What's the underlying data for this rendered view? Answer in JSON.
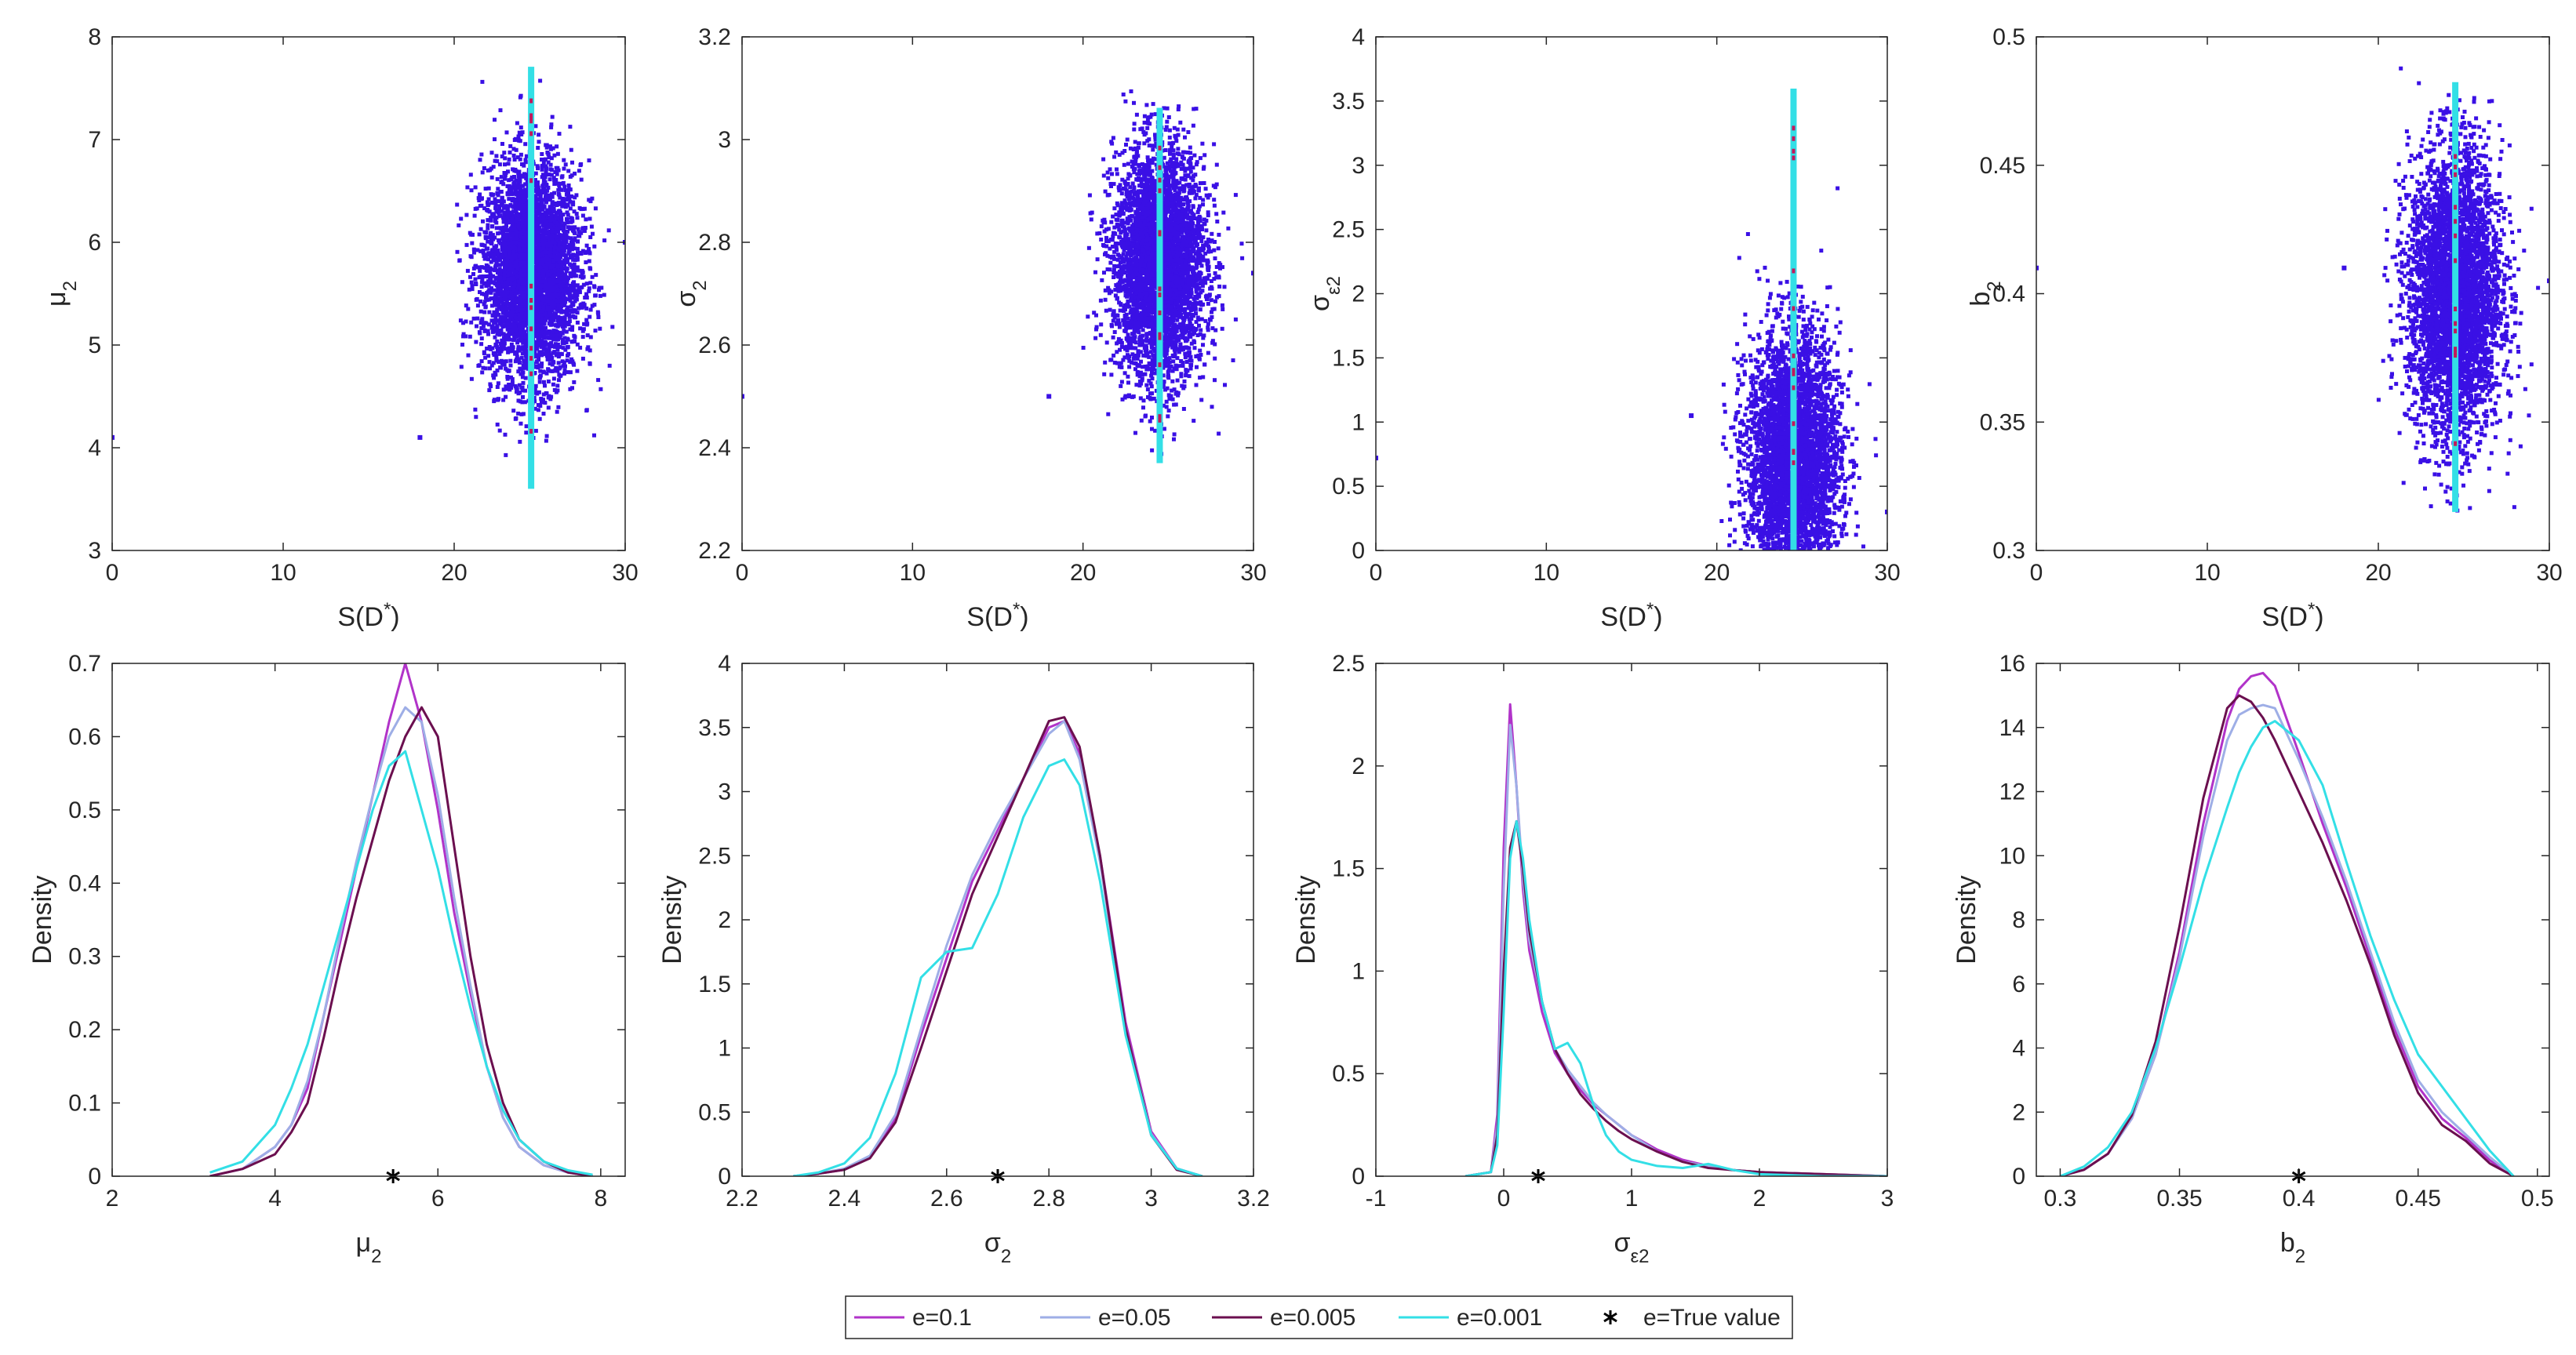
{
  "figure": {
    "legend": [
      {
        "label": "e=0.1",
        "color": "#b133c9",
        "kind": "line"
      },
      {
        "label": "e=0.05",
        "color": "#9eaee6",
        "kind": "line"
      },
      {
        "label": "e=0.005",
        "color": "#6b0f4f",
        "kind": "line"
      },
      {
        "label": "e=0.001",
        "color": "#33dfe6",
        "kind": "line"
      },
      {
        "label": "e=True value",
        "color": "#000000",
        "kind": "marker"
      }
    ]
  },
  "chart_data": [
    {
      "type": "scatter",
      "panel": "scatter-mu2",
      "xlabel": "S(D*)",
      "ylabel": "μ2",
      "xlim": [
        0,
        30
      ],
      "ylim": [
        3,
        8
      ],
      "xticks": [
        "0",
        "10",
        "20",
        "30"
      ],
      "yticks": [
        "3",
        "4",
        "5",
        "6",
        "7",
        "8"
      ],
      "cloud": {
        "x_center": 24.5,
        "x_spread": 3.2,
        "y_center": 5.7,
        "y_spread": 0.95,
        "y_min": 3.6,
        "y_max": 7.9
      },
      "outliers": [
        [
          0,
          4.1
        ],
        [
          18,
          4.1
        ],
        [
          30,
          6.0
        ]
      ],
      "line_x": 24.5
    },
    {
      "type": "scatter",
      "panel": "scatter-sigma2",
      "xlabel": "S(D*)",
      "ylabel": "σ2",
      "xlim": [
        0,
        30
      ],
      "ylim": [
        2.2,
        3.2
      ],
      "xticks": [
        "0",
        "10",
        "20",
        "30"
      ],
      "yticks": [
        "2.2",
        "2.4",
        "2.6",
        "2.8",
        "3",
        "3.2"
      ],
      "cloud": {
        "x_center": 24.5,
        "x_spread": 3.0,
        "y_center": 2.76,
        "y_spread": 0.2,
        "y_min": 2.37,
        "y_max": 3.1
      },
      "outliers": [
        [
          0,
          2.5
        ],
        [
          18,
          2.5
        ],
        [
          30,
          2.74
        ]
      ],
      "line_x": 24.5
    },
    {
      "type": "scatter",
      "panel": "scatter-sigma-eps2",
      "xlabel": "S(D*)",
      "ylabel": "σε2",
      "xlim": [
        0,
        30
      ],
      "ylim": [
        0,
        4
      ],
      "xticks": [
        "0",
        "10",
        "20",
        "30"
      ],
      "yticks": [
        "0",
        "0.5",
        "1",
        "1.5",
        "2",
        "2.5",
        "3",
        "3.5",
        "4"
      ],
      "cloud": {
        "x_center": 24.5,
        "x_spread": 3.0,
        "y_center": 0.7,
        "y_spread": 0.9,
        "y_min": 0,
        "y_max": 3.75
      },
      "outliers": [
        [
          0,
          0.72
        ],
        [
          18.5,
          1.05
        ],
        [
          30,
          0.3
        ]
      ],
      "line_x": 24.5
    },
    {
      "type": "scatter",
      "panel": "scatter-b2",
      "xlabel": "S(D*)",
      "ylabel": "b2",
      "xlim": [
        0,
        30
      ],
      "ylim": [
        0.3,
        0.5
      ],
      "xticks": [
        "0",
        "10",
        "20",
        "30"
      ],
      "yticks": [
        "0.3",
        "0.35",
        "0.4",
        "0.45",
        "0.5"
      ],
      "cloud": {
        "x_center": 24.5,
        "x_spread": 3.0,
        "y_center": 0.4,
        "y_spread": 0.05,
        "y_min": 0.315,
        "y_max": 0.49
      },
      "outliers": [
        [
          0,
          0.41
        ],
        [
          18,
          0.41
        ],
        [
          30,
          0.405
        ]
      ],
      "line_x": 24.5
    },
    {
      "type": "line",
      "panel": "density-mu2",
      "xlabel": "μ2",
      "ylabel": "Density",
      "xlim": [
        2,
        8.3
      ],
      "ylim": [
        0,
        0.7
      ],
      "xticks": [
        "2",
        "4",
        "6",
        "8"
      ],
      "yticks": [
        "0",
        "0.1",
        "0.2",
        "0.3",
        "0.4",
        "0.5",
        "0.6",
        "0.7"
      ],
      "true_value": 5.45,
      "x": [
        3.2,
        3.6,
        4.0,
        4.2,
        4.4,
        4.6,
        4.8,
        5.0,
        5.2,
        5.4,
        5.6,
        5.8,
        6.0,
        6.2,
        6.4,
        6.6,
        6.8,
        7.0,
        7.3,
        7.6,
        7.9
      ],
      "series": [
        {
          "name": "e=0.1",
          "values": [
            0,
            0.01,
            0.04,
            0.07,
            0.12,
            0.22,
            0.32,
            0.42,
            0.52,
            0.62,
            0.7,
            0.62,
            0.5,
            0.36,
            0.25,
            0.15,
            0.08,
            0.04,
            0.015,
            0.005,
            0
          ]
        },
        {
          "name": "e=0.05",
          "values": [
            0,
            0.01,
            0.04,
            0.07,
            0.13,
            0.22,
            0.33,
            0.43,
            0.52,
            0.6,
            0.64,
            0.62,
            0.52,
            0.38,
            0.26,
            0.15,
            0.08,
            0.04,
            0.015,
            0.005,
            0
          ]
        },
        {
          "name": "e=0.005",
          "values": [
            0,
            0.01,
            0.03,
            0.06,
            0.1,
            0.19,
            0.29,
            0.38,
            0.46,
            0.54,
            0.6,
            0.64,
            0.6,
            0.45,
            0.3,
            0.18,
            0.1,
            0.05,
            0.02,
            0.005,
            0
          ]
        },
        {
          "name": "e=0.001",
          "values": [
            0.005,
            0.02,
            0.07,
            0.12,
            0.18,
            0.26,
            0.34,
            0.42,
            0.5,
            0.56,
            0.58,
            0.5,
            0.42,
            0.32,
            0.23,
            0.15,
            0.09,
            0.05,
            0.02,
            0.008,
            0.002
          ]
        }
      ]
    },
    {
      "type": "line",
      "panel": "density-sigma2",
      "xlabel": "σ2",
      "ylabel": "Density",
      "xlim": [
        2.2,
        3.2
      ],
      "ylim": [
        0,
        4
      ],
      "xticks": [
        "2.2",
        "2.4",
        "2.6",
        "2.8",
        "3",
        "3.2"
      ],
      "yticks": [
        "0",
        "0.5",
        "1",
        "1.5",
        "2",
        "2.5",
        "3",
        "3.5",
        "4"
      ],
      "true_value": 2.7,
      "x": [
        2.3,
        2.35,
        2.4,
        2.45,
        2.5,
        2.55,
        2.6,
        2.65,
        2.7,
        2.75,
        2.8,
        2.83,
        2.86,
        2.9,
        2.95,
        3.0,
        3.05,
        3.1
      ],
      "series": [
        {
          "name": "e=0.1",
          "values": [
            0,
            0.02,
            0.05,
            0.15,
            0.45,
            1.1,
            1.7,
            2.3,
            2.7,
            3.1,
            3.5,
            3.55,
            3.3,
            2.5,
            1.2,
            0.35,
            0.06,
            0
          ]
        },
        {
          "name": "e=0.05",
          "values": [
            0,
            0.02,
            0.06,
            0.16,
            0.48,
            1.15,
            1.8,
            2.35,
            2.75,
            3.1,
            3.45,
            3.55,
            3.25,
            2.45,
            1.15,
            0.33,
            0.06,
            0
          ]
        },
        {
          "name": "e=0.005",
          "values": [
            0,
            0.02,
            0.05,
            0.14,
            0.42,
            1.0,
            1.6,
            2.2,
            2.65,
            3.1,
            3.55,
            3.58,
            3.35,
            2.5,
            1.15,
            0.32,
            0.05,
            0
          ]
        },
        {
          "name": "e=0.001",
          "values": [
            0,
            0.03,
            0.1,
            0.3,
            0.8,
            1.55,
            1.75,
            1.78,
            2.2,
            2.8,
            3.2,
            3.25,
            3.05,
            2.3,
            1.1,
            0.32,
            0.06,
            0
          ]
        }
      ]
    },
    {
      "type": "line",
      "panel": "density-sigma-eps2",
      "xlabel": "σε2",
      "ylabel": "Density",
      "xlim": [
        -1,
        3
      ],
      "ylim": [
        0,
        2.5
      ],
      "xticks": [
        "-1",
        "0",
        "1",
        "2",
        "3"
      ],
      "yticks": [
        "0",
        "0.5",
        "1",
        "1.5",
        "2",
        "2.5"
      ],
      "true_value": 0.27,
      "x": [
        -0.3,
        -0.1,
        -0.05,
        0.0,
        0.05,
        0.1,
        0.15,
        0.2,
        0.3,
        0.4,
        0.5,
        0.6,
        0.7,
        0.8,
        0.9,
        1.0,
        1.2,
        1.4,
        1.6,
        1.8,
        2.0,
        2.5,
        3.0
      ],
      "series": [
        {
          "name": "e=0.1",
          "values": [
            0,
            0.02,
            0.3,
            1.6,
            2.3,
            1.9,
            1.4,
            1.1,
            0.8,
            0.6,
            0.5,
            0.42,
            0.35,
            0.3,
            0.25,
            0.2,
            0.13,
            0.08,
            0.05,
            0.03,
            0.02,
            0.01,
            0
          ]
        },
        {
          "name": "e=0.05",
          "values": [
            0,
            0.02,
            0.25,
            1.4,
            2.2,
            1.9,
            1.45,
            1.15,
            0.85,
            0.62,
            0.52,
            0.44,
            0.36,
            0.3,
            0.25,
            0.2,
            0.12,
            0.07,
            0.05,
            0.03,
            0.02,
            0.01,
            0
          ]
        },
        {
          "name": "e=0.005",
          "values": [
            0,
            0.02,
            0.2,
            1.0,
            1.6,
            1.73,
            1.5,
            1.2,
            0.85,
            0.62,
            0.5,
            0.4,
            0.33,
            0.27,
            0.22,
            0.18,
            0.12,
            0.07,
            0.04,
            0.03,
            0.02,
            0.01,
            0
          ]
        },
        {
          "name": "e=0.001",
          "values": [
            0,
            0.02,
            0.15,
            0.8,
            1.55,
            1.73,
            1.55,
            1.25,
            0.85,
            0.62,
            0.65,
            0.55,
            0.35,
            0.2,
            0.12,
            0.08,
            0.05,
            0.04,
            0.06,
            0.03,
            0.01,
            0,
            0
          ]
        }
      ]
    },
    {
      "type": "line",
      "panel": "density-b2",
      "xlabel": "b2",
      "ylabel": "Density",
      "xlim": [
        0.29,
        0.505
      ],
      "ylim": [
        0,
        16
      ],
      "xticks": [
        "0.3",
        "0.35",
        "0.4",
        "0.45",
        "0.5"
      ],
      "yticks": [
        "0",
        "2",
        "4",
        "6",
        "8",
        "10",
        "12",
        "14",
        "16"
      ],
      "true_value": 0.4,
      "x": [
        0.3,
        0.31,
        0.32,
        0.33,
        0.34,
        0.35,
        0.36,
        0.37,
        0.375,
        0.38,
        0.385,
        0.39,
        0.4,
        0.41,
        0.42,
        0.43,
        0.44,
        0.45,
        0.46,
        0.47,
        0.48,
        0.49
      ],
      "series": [
        {
          "name": "e=0.1",
          "values": [
            0,
            0.2,
            0.7,
            1.8,
            3.8,
            7.0,
            11.0,
            14.2,
            15.2,
            15.6,
            15.7,
            15.3,
            13.2,
            11.0,
            9.0,
            6.8,
            4.6,
            2.8,
            1.8,
            1.2,
            0.5,
            0
          ]
        },
        {
          "name": "e=0.05",
          "values": [
            0,
            0.2,
            0.7,
            1.8,
            3.8,
            6.8,
            10.6,
            13.6,
            14.4,
            14.6,
            14.7,
            14.6,
            13.0,
            11.2,
            9.2,
            7.0,
            4.8,
            3.0,
            2.0,
            1.3,
            0.6,
            0
          ]
        },
        {
          "name": "e=0.005",
          "values": [
            0,
            0.2,
            0.7,
            1.9,
            4.2,
            7.8,
            11.8,
            14.6,
            15.0,
            14.8,
            14.3,
            13.6,
            12.0,
            10.4,
            8.6,
            6.6,
            4.4,
            2.6,
            1.6,
            1.1,
            0.4,
            0
          ]
        },
        {
          "name": "e=0.001",
          "values": [
            0,
            0.3,
            0.9,
            2.0,
            4.0,
            6.5,
            9.2,
            11.5,
            12.6,
            13.4,
            14.0,
            14.2,
            13.6,
            12.2,
            9.8,
            7.5,
            5.5,
            3.8,
            2.8,
            1.8,
            0.8,
            0
          ]
        }
      ]
    }
  ]
}
